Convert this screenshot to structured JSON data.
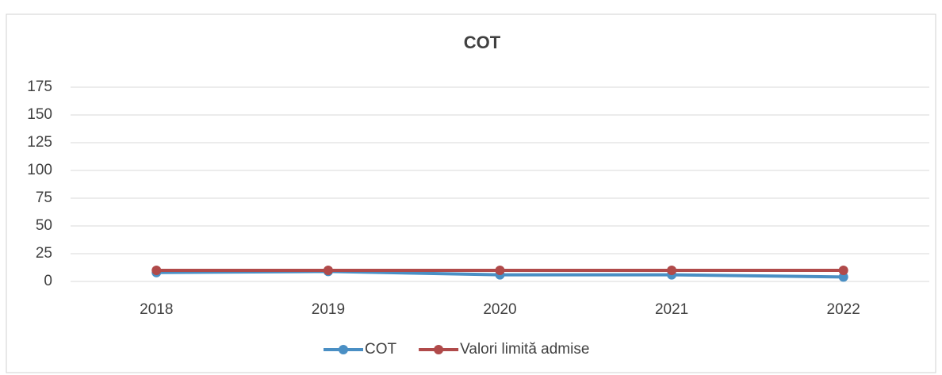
{
  "chart_data": {
    "type": "line",
    "title": "COT",
    "categories": [
      "2018",
      "2019",
      "2020",
      "2021",
      "2022"
    ],
    "series": [
      {
        "name": "COT",
        "color": "#4a8fc4",
        "values": [
          8,
          9,
          6,
          6,
          4
        ]
      },
      {
        "name": "Valori limită admise",
        "color": "#b04a4a",
        "values": [
          10,
          10,
          10,
          10,
          10
        ]
      }
    ],
    "ylim": [
      0,
      175
    ],
    "yticks": [
      0,
      25,
      50,
      75,
      100,
      125,
      150,
      175
    ],
    "grid": true,
    "legend": "bottom"
  }
}
